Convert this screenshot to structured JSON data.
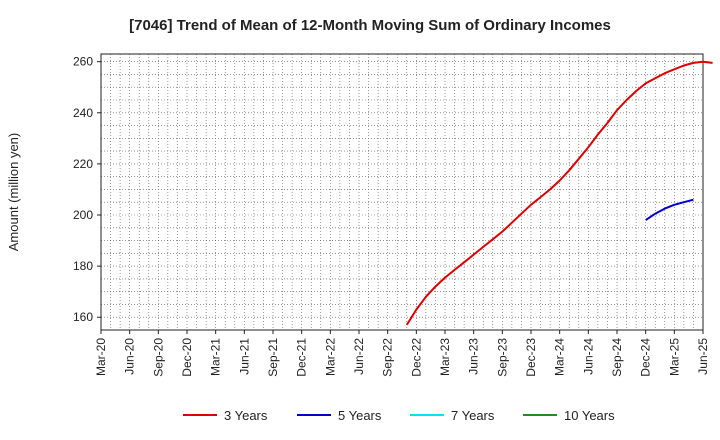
{
  "chart_data": {
    "type": "line",
    "title": "[7046]  Trend of Mean of 12-Month Moving Sum of Ordinary Incomes",
    "ylabel": "Amount (million yen)",
    "xlabel": "",
    "ylim": [
      155,
      263
    ],
    "y_ticks": [
      160,
      180,
      200,
      220,
      240,
      260
    ],
    "x_ticks": [
      "Mar-20",
      "Jun-20",
      "Sep-20",
      "Dec-20",
      "Mar-21",
      "Jun-21",
      "Sep-21",
      "Dec-21",
      "Mar-22",
      "Jun-22",
      "Sep-22",
      "Dec-22",
      "Mar-23",
      "Jun-23",
      "Sep-23",
      "Dec-23",
      "Mar-24",
      "Jun-24",
      "Sep-24",
      "Dec-24",
      "Mar-25",
      "Jun-25"
    ],
    "grid": true,
    "legend_position": "bottom",
    "series": [
      {
        "name": "3 Years",
        "color": "#e00000",
        "points": [
          [
            "Nov-22",
            157
          ],
          [
            "Dec-22",
            163
          ],
          [
            "Jan-23",
            168
          ],
          [
            "Feb-23",
            172
          ],
          [
            "Mar-23",
            175.5
          ],
          [
            "Apr-23",
            178.5
          ],
          [
            "May-23",
            181.5
          ],
          [
            "Jun-23",
            184.5
          ],
          [
            "Jul-23",
            187.5
          ],
          [
            "Aug-23",
            190.5
          ],
          [
            "Sep-23",
            193.5
          ],
          [
            "Oct-23",
            197
          ],
          [
            "Nov-23",
            200.5
          ],
          [
            "Dec-23",
            204
          ],
          [
            "Jan-24",
            207
          ],
          [
            "Feb-24",
            210
          ],
          [
            "Mar-24",
            213.5
          ],
          [
            "Apr-24",
            217.5
          ],
          [
            "May-24",
            222
          ],
          [
            "Jun-24",
            226.5
          ],
          [
            "Jul-24",
            231.5
          ],
          [
            "Aug-24",
            236
          ],
          [
            "Sep-24",
            241
          ],
          [
            "Oct-24",
            245
          ],
          [
            "Nov-24",
            248.5
          ],
          [
            "Dec-24",
            251.5
          ],
          [
            "Jan-25",
            253.5
          ],
          [
            "Feb-25",
            255.5
          ],
          [
            "Mar-25",
            257
          ],
          [
            "Apr-25",
            258.5
          ],
          [
            "May-25",
            259.5
          ],
          [
            "Jun-25",
            260
          ],
          [
            "Jul-25",
            259.5
          ]
        ]
      },
      {
        "name": "5 Years",
        "color": "#0000cc",
        "points": [
          [
            "Dec-24",
            198
          ],
          [
            "Jan-25",
            200.5
          ],
          [
            "Feb-25",
            202.5
          ],
          [
            "Mar-25",
            204
          ],
          [
            "Apr-25",
            205
          ],
          [
            "May-25",
            206
          ]
        ]
      },
      {
        "name": "7 Years",
        "color": "#00e5ee",
        "points": []
      },
      {
        "name": "10 Years",
        "color": "#228b22",
        "points": []
      }
    ]
  }
}
